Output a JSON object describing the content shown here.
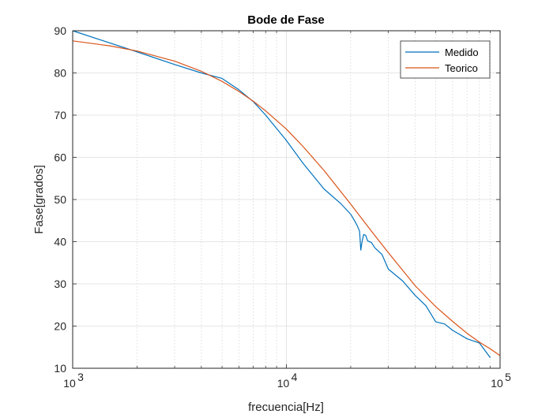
{
  "chart_data": {
    "type": "line",
    "title": "Bode de Fase",
    "xlabel": "frecuencia[Hz]",
    "ylabel": "Fase[grados]",
    "x_scale": "log",
    "xlim": [
      1000,
      100000
    ],
    "ylim": [
      10,
      90
    ],
    "x_ticks": [
      1000,
      10000,
      100000
    ],
    "x_tick_labels": [
      {
        "base": "10",
        "exp": "3"
      },
      {
        "base": "10",
        "exp": "4"
      },
      {
        "base": "10",
        "exp": "5"
      }
    ],
    "y_ticks": [
      10,
      20,
      30,
      40,
      50,
      60,
      70,
      80,
      90
    ],
    "grid": true,
    "minor_grid": true,
    "legend_position": "top-right",
    "series": [
      {
        "name": "Medido",
        "color": "#0072BD",
        "points": [
          [
            1000,
            90
          ],
          [
            2000,
            85
          ],
          [
            3000,
            82
          ],
          [
            4000,
            80
          ],
          [
            5000,
            78.7
          ],
          [
            6000,
            76
          ],
          [
            7000,
            73.2
          ],
          [
            8000,
            70
          ],
          [
            10000,
            64
          ],
          [
            12000,
            58.5
          ],
          [
            15000,
            52.5
          ],
          [
            18000,
            49
          ],
          [
            20000,
            46.5
          ],
          [
            21000,
            44.7
          ],
          [
            21500,
            43.7
          ],
          [
            22000,
            42.5
          ],
          [
            22300,
            38
          ],
          [
            22600,
            40
          ],
          [
            23000,
            41.7
          ],
          [
            23500,
            41.5
          ],
          [
            24000,
            40.2
          ],
          [
            25000,
            39.8
          ],
          [
            26000,
            38.5
          ],
          [
            28000,
            37
          ],
          [
            30000,
            33.5
          ],
          [
            35000,
            30.7
          ],
          [
            40000,
            27.3
          ],
          [
            45000,
            24.8
          ],
          [
            50000,
            21
          ],
          [
            55000,
            20.5
          ],
          [
            60000,
            19
          ],
          [
            70000,
            17
          ],
          [
            80000,
            16
          ],
          [
            90000,
            12.5
          ]
        ]
      },
      {
        "name": "Teorico",
        "color": "#D95319",
        "points": [
          [
            1000,
            87.6
          ],
          [
            1500,
            86.4
          ],
          [
            2000,
            85.2
          ],
          [
            3000,
            82.8
          ],
          [
            4000,
            80.4
          ],
          [
            5000,
            78
          ],
          [
            6000,
            75.6
          ],
          [
            7000,
            73.3
          ],
          [
            8000,
            71
          ],
          [
            10000,
            66.7
          ],
          [
            12000,
            62.5
          ],
          [
            15000,
            56.9
          ],
          [
            20000,
            48.9
          ],
          [
            25000,
            42.5
          ],
          [
            30000,
            37.4
          ],
          [
            40000,
            29.6
          ],
          [
            50000,
            24.6
          ],
          [
            60000,
            21.1
          ],
          [
            70000,
            18.3
          ],
          [
            80000,
            16.2
          ],
          [
            90000,
            14.6
          ],
          [
            100000,
            13
          ]
        ]
      }
    ]
  }
}
